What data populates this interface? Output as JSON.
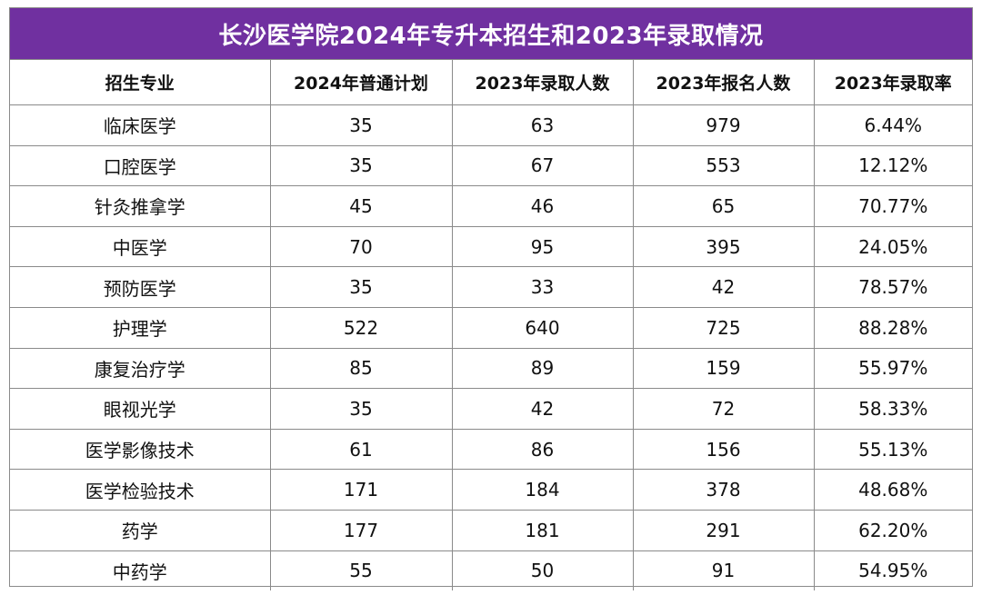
{
  "title": "长沙医学院2024年专升本招生和2023年录取情况",
  "colors": {
    "title_bg": "#7030a0",
    "title_text": "#ffffff",
    "border": "#8a8a8a"
  },
  "table": {
    "headers": [
      "招生专业",
      "2024年普通计划",
      "2023年录取人数",
      "2023年报名人数",
      "2023年录取率"
    ],
    "rows": [
      [
        "临床医学",
        "35",
        "63",
        "979",
        "6.44%"
      ],
      [
        "口腔医学",
        "35",
        "67",
        "553",
        "12.12%"
      ],
      [
        "针灸推拿学",
        "45",
        "46",
        "65",
        "70.77%"
      ],
      [
        "中医学",
        "70",
        "95",
        "395",
        "24.05%"
      ],
      [
        "预防医学",
        "35",
        "33",
        "42",
        "78.57%"
      ],
      [
        "护理学",
        "522",
        "640",
        "725",
        "88.28%"
      ],
      [
        "康复治疗学",
        "85",
        "89",
        "159",
        "55.97%"
      ],
      [
        "眼视光学",
        "35",
        "42",
        "72",
        "58.33%"
      ],
      [
        "医学影像技术",
        "61",
        "86",
        "156",
        "55.13%"
      ],
      [
        "医学检验技术",
        "171",
        "184",
        "378",
        "48.68%"
      ],
      [
        "药学",
        "177",
        "181",
        "291",
        "62.20%"
      ],
      [
        "中药学",
        "55",
        "50",
        "91",
        "54.95%"
      ]
    ]
  }
}
